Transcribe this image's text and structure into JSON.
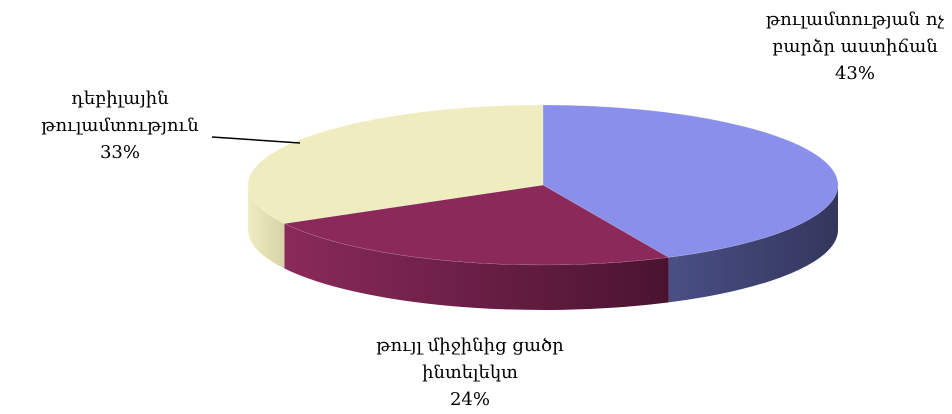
{
  "chart_data": {
    "type": "pie",
    "categories": [
      "թուլամտության ոչ բարձր աստիճան",
      "թույլ միջինից ցածր ինտելեկտ",
      "դեբիլային թուլամտություն"
    ],
    "values": [
      43,
      24,
      33
    ],
    "value_labels": [
      "43%",
      "24%",
      "33%"
    ],
    "colors": [
      "#8b8fec",
      "#8b2a5a",
      "#efedc0"
    ]
  }
}
